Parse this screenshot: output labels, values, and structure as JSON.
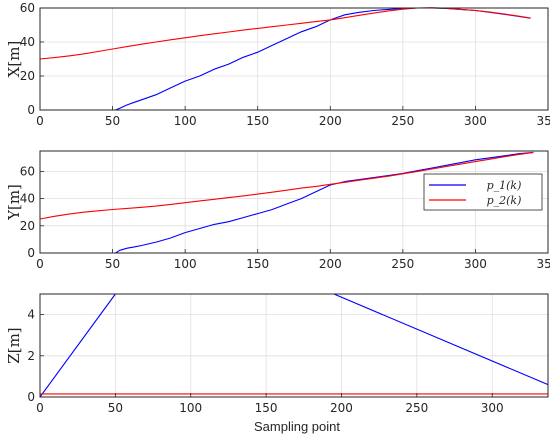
{
  "chart_data": [
    {
      "type": "line",
      "title": "",
      "xlabel": "",
      "ylabel": "X[m]",
      "xlim": [
        0,
        350
      ],
      "ylim": [
        0,
        60
      ],
      "xticks": [
        "0",
        "50",
        "100",
        "150",
        "200",
        "250",
        "300",
        "350"
      ],
      "yticks": [
        "0",
        "20",
        "40",
        "60"
      ],
      "grid": true,
      "series": [
        {
          "color": "#0000ff",
          "x": [
            0,
            52,
            55,
            60,
            65,
            70,
            80,
            90,
            100,
            110,
            120,
            130,
            140,
            150,
            160,
            170,
            180,
            190,
            200,
            210,
            220,
            230,
            240,
            250,
            260,
            270,
            280,
            290,
            300,
            310,
            320,
            330,
            338
          ],
          "y": [
            0,
            0,
            1,
            3,
            4.5,
            6,
            9,
            13,
            17,
            20,
            24,
            27,
            31,
            34,
            38,
            42,
            46,
            49,
            53,
            56,
            57.5,
            58.5,
            59.2,
            59.8,
            60,
            60,
            59.7,
            59.2,
            58.5,
            57.5,
            56.3,
            55,
            54
          ]
        },
        {
          "color": "#ff0000",
          "x": [
            0,
            10,
            20,
            30,
            40,
            50,
            60,
            70,
            80,
            90,
            100,
            110,
            120,
            130,
            140,
            150,
            160,
            170,
            180,
            190,
            200,
            210,
            220,
            230,
            240,
            250,
            260,
            270,
            280,
            290,
            300,
            310,
            320,
            330,
            338
          ],
          "y": [
            30,
            30.8,
            31.8,
            33,
            34.4,
            35.9,
            37.3,
            38.7,
            40,
            41.3,
            42.5,
            43.7,
            44.8,
            45.9,
            47,
            48,
            49,
            50,
            51,
            52,
            53,
            54.3,
            55.7,
            57,
            58.3,
            59.3,
            60,
            60.2,
            59.8,
            59.2,
            58.5,
            57.6,
            56.5,
            55.2,
            54.1
          ]
        }
      ]
    },
    {
      "type": "line",
      "title": "",
      "xlabel": "",
      "ylabel": "Y[m]",
      "xlim": [
        0,
        350
      ],
      "ylim": [
        0,
        75
      ],
      "xticks": [
        "0",
        "50",
        "100",
        "150",
        "200",
        "250",
        "300",
        "350"
      ],
      "yticks": [
        "0",
        "20",
        "40",
        "60"
      ],
      "grid": true,
      "legend": "right",
      "series": [
        {
          "name": "p_1(k)",
          "color": "#0000ff",
          "x": [
            0,
            52,
            55,
            60,
            65,
            70,
            80,
            90,
            100,
            110,
            120,
            130,
            140,
            150,
            160,
            170,
            180,
            190,
            200,
            210,
            220,
            230,
            240,
            250,
            260,
            270,
            280,
            290,
            300,
            310,
            320,
            330,
            340
          ],
          "y": [
            0,
            0,
            2,
            3.5,
            4.5,
            5.5,
            8,
            11,
            15,
            18,
            21,
            23,
            26,
            29,
            32,
            36,
            40,
            45,
            50,
            52.5,
            54,
            55.5,
            57,
            58.5,
            60.5,
            62.5,
            64.5,
            66.5,
            68.5,
            70,
            71.5,
            73,
            74
          ]
        },
        {
          "name": "p_2(k)",
          "color": "#ff0000",
          "x": [
            0,
            10,
            20,
            30,
            40,
            50,
            60,
            70,
            80,
            90,
            100,
            110,
            120,
            130,
            140,
            150,
            160,
            170,
            180,
            190,
            200,
            210,
            220,
            230,
            240,
            250,
            260,
            270,
            280,
            290,
            300,
            310,
            320,
            330,
            340
          ],
          "y": [
            25,
            27,
            28.6,
            30,
            31,
            32,
            32.8,
            33.6,
            34.5,
            35.7,
            37,
            38.3,
            39.5,
            40.7,
            42,
            43.3,
            44.7,
            46.2,
            47.7,
            49,
            50.5,
            52,
            53.5,
            55,
            56.5,
            58.2,
            60,
            61.8,
            63.6,
            65.4,
            67.2,
            69,
            70.8,
            72.5,
            74
          ]
        }
      ]
    },
    {
      "type": "line",
      "title": "",
      "xlabel": "Sampling point",
      "ylabel": "Z[m]",
      "xlim": [
        0,
        337
      ],
      "ylim": [
        0,
        5
      ],
      "xticks": [
        "0",
        "50",
        "100",
        "150",
        "200",
        "250",
        "300"
      ],
      "yticks": [
        "0",
        "2",
        "4"
      ],
      "grid": true,
      "series": [
        {
          "color": "#0000ff",
          "x": [
            0,
            50,
            195,
            337
          ],
          "y": [
            0,
            5,
            5,
            0.6
          ]
        },
        {
          "color": "#ff0000",
          "x": [
            0,
            337
          ],
          "y": [
            0.15,
            0.15
          ]
        }
      ]
    }
  ]
}
